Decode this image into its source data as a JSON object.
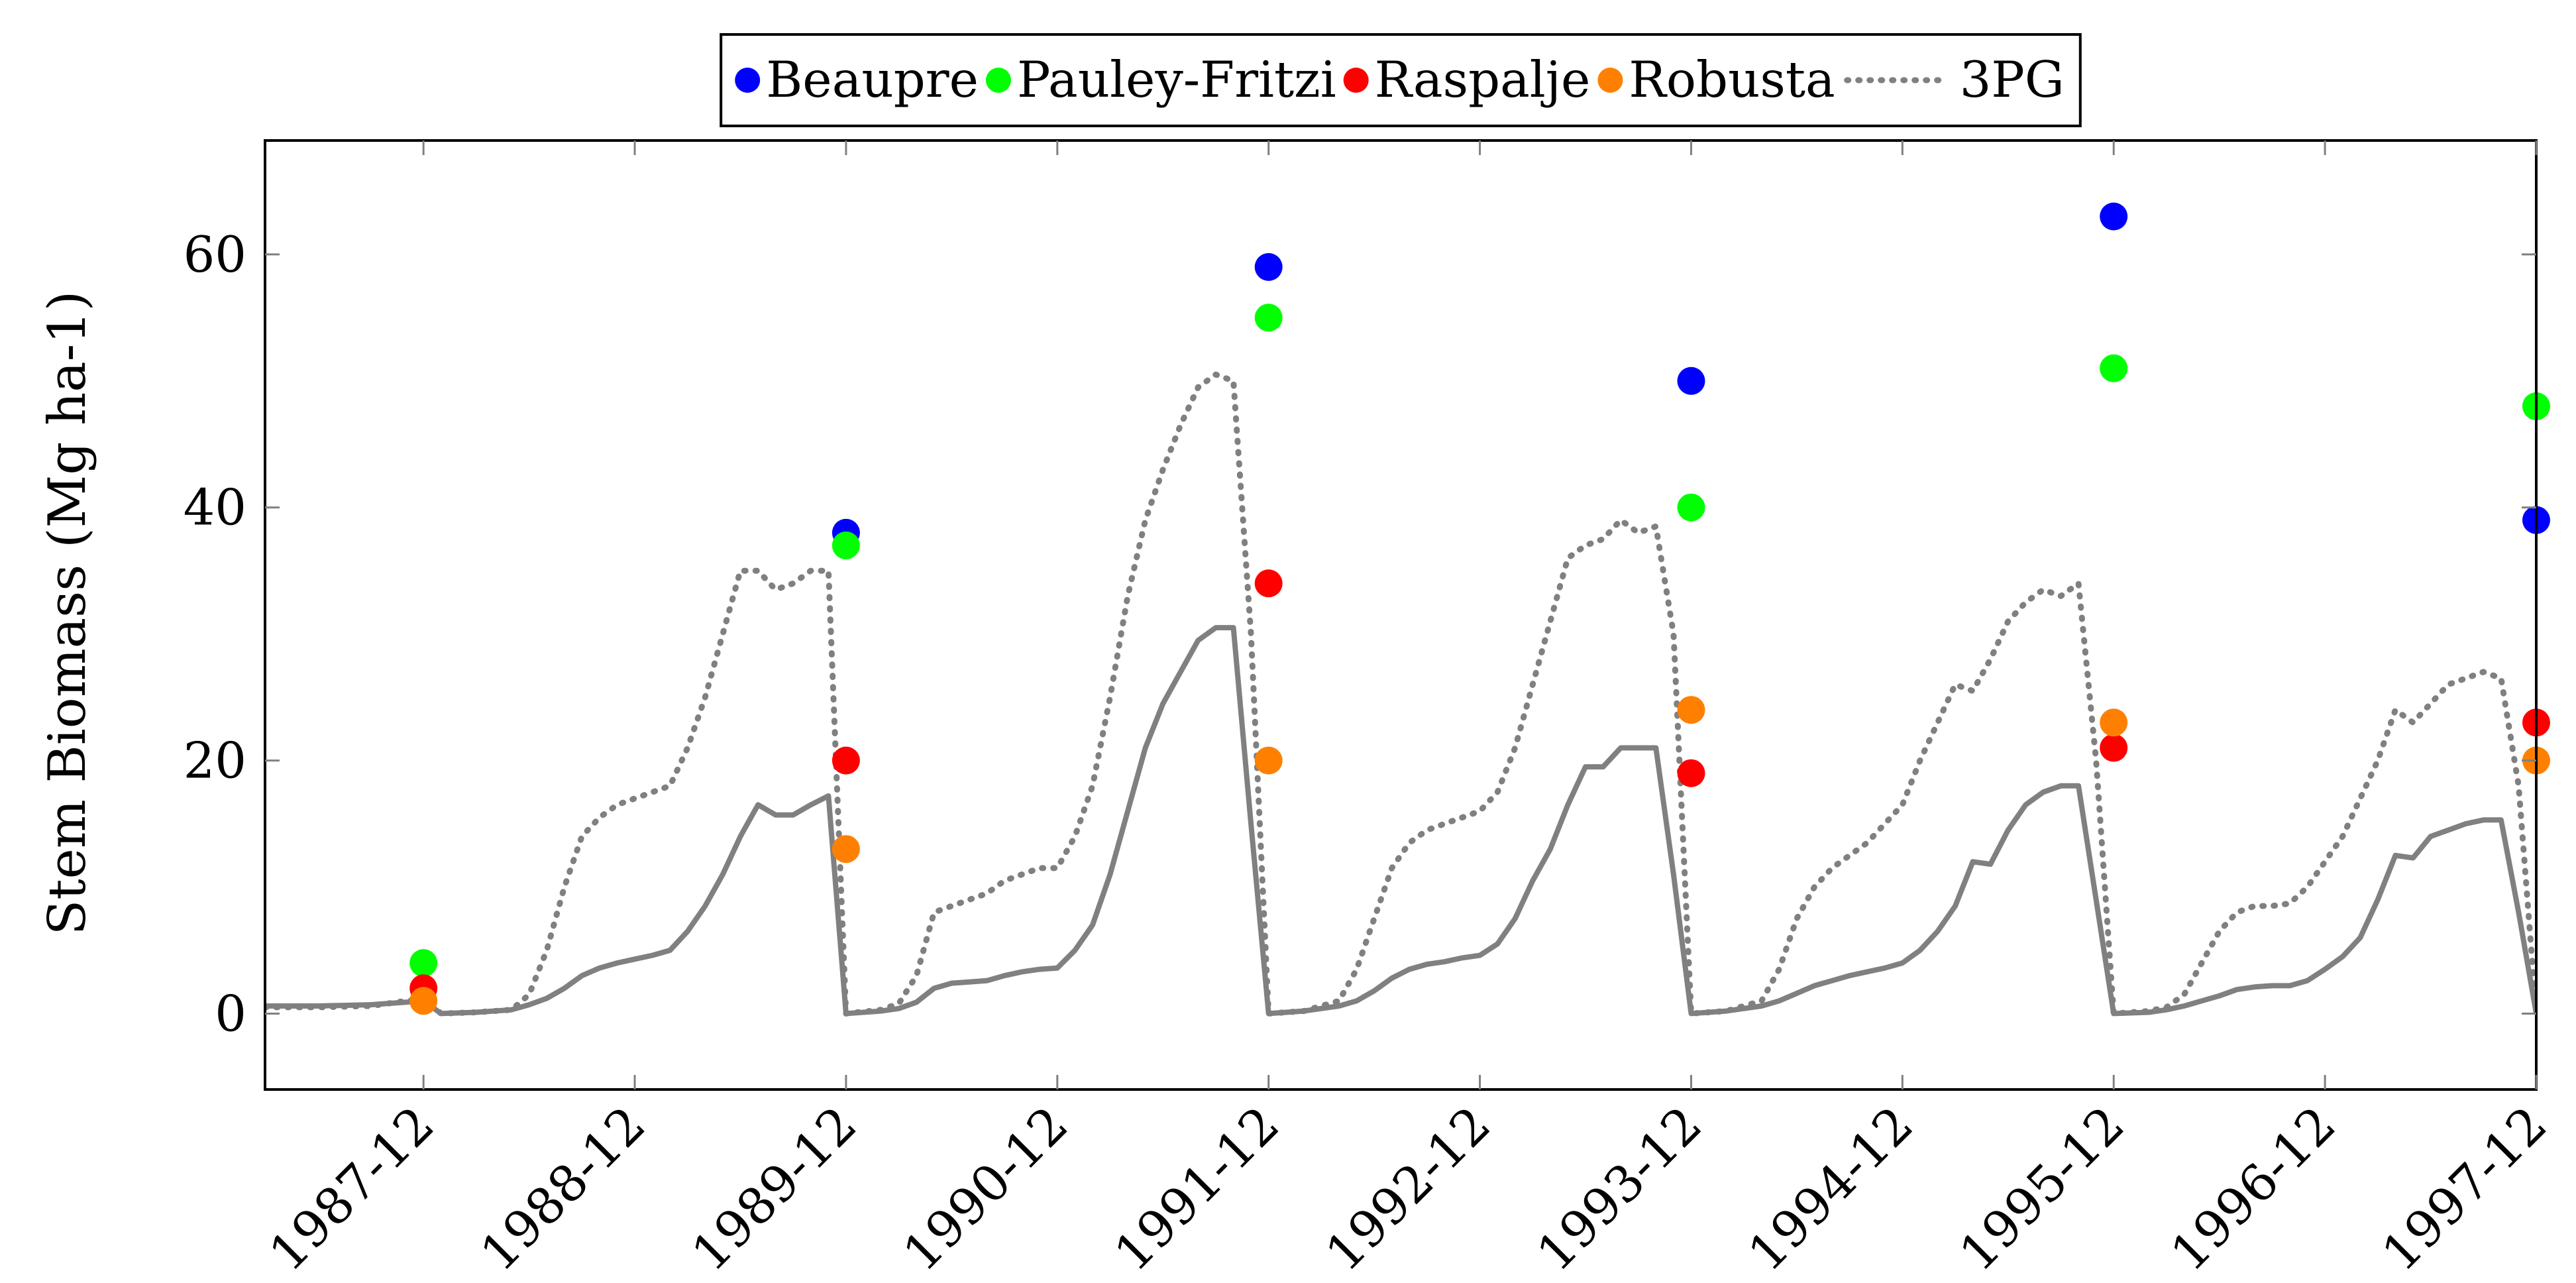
{
  "chart_data": {
    "type": "scatter",
    "xlabel": "",
    "ylabel": "Stem Biomass (Mg ha-1)",
    "x_axis": "date (monthly)",
    "xlim": [
      "1987-03",
      "1997-12"
    ],
    "ylim": [
      -6,
      69
    ],
    "x_ticks": [
      "1987-12",
      "1988-12",
      "1989-12",
      "1990-12",
      "1991-12",
      "1992-12",
      "1993-12",
      "1994-12",
      "1995-12",
      "1996-12",
      "1997-12"
    ],
    "y_ticks": [
      0,
      20,
      40,
      60
    ],
    "legend": {
      "placement": "top-center, outside plot"
    },
    "grid": false,
    "series": [
      {
        "name": "Beaupre",
        "kind": "points",
        "color": "#0000ff",
        "points": [
          [
            "1989-12",
            38
          ],
          [
            "1991-12",
            59
          ],
          [
            "1993-12",
            50
          ],
          [
            "1995-12",
            63
          ],
          [
            "1997-12",
            39
          ]
        ]
      },
      {
        "name": "Pauley-Fritzi",
        "kind": "points",
        "color": "#00ff00",
        "points": [
          [
            "1987-12",
            4
          ],
          [
            "1989-12",
            37
          ],
          [
            "1991-12",
            55
          ],
          [
            "1993-12",
            40
          ],
          [
            "1995-12",
            51
          ],
          [
            "1997-12",
            48
          ]
        ]
      },
      {
        "name": "Raspalje",
        "kind": "points",
        "color": "#ff0000",
        "points": [
          [
            "1987-12",
            2
          ],
          [
            "1989-12",
            20
          ],
          [
            "1991-12",
            34
          ],
          [
            "1993-12",
            19
          ],
          [
            "1995-12",
            21
          ],
          [
            "1997-12",
            23
          ]
        ]
      },
      {
        "name": "Robusta",
        "kind": "points",
        "color": "#ff8000",
        "points": [
          [
            "1987-12",
            1
          ],
          [
            "1989-12",
            13
          ],
          [
            "1991-12",
            20
          ],
          [
            "1993-12",
            24
          ],
          [
            "1995-12",
            23
          ],
          [
            "1997-12",
            20
          ]
        ]
      },
      {
        "name": "3PG",
        "kind": "line",
        "dashed": true,
        "color": "#808080",
        "points": [
          [
            "1987-03",
            0.5
          ],
          [
            "1987-06",
            0.5
          ],
          [
            "1987-09",
            0.6
          ],
          [
            "1987-11",
            1.0
          ],
          [
            "1987-12",
            1.2
          ],
          [
            "1988-01",
            0.0
          ],
          [
            "1988-03",
            0.1
          ],
          [
            "1988-05",
            0.3
          ],
          [
            "1988-06",
            1.5
          ],
          [
            "1988-07",
            5.0
          ],
          [
            "1988-08",
            10.0
          ],
          [
            "1988-09",
            14.0
          ],
          [
            "1988-10",
            15.5
          ],
          [
            "1988-11",
            16.5
          ],
          [
            "1988-12",
            17.0
          ],
          [
            "1989-01",
            17.5
          ],
          [
            "1989-02",
            18.0
          ],
          [
            "1989-03",
            21.0
          ],
          [
            "1989-04",
            25.0
          ],
          [
            "1989-05",
            30.0
          ],
          [
            "1989-06",
            35.0
          ],
          [
            "1989-07",
            35.0
          ],
          [
            "1989-08",
            33.5
          ],
          [
            "1989-09",
            34.0
          ],
          [
            "1989-10",
            35.0
          ],
          [
            "1989-11",
            35.0
          ],
          [
            "1989-12",
            0.0
          ],
          [
            "1990-02",
            0.3
          ],
          [
            "1990-03",
            0.8
          ],
          [
            "1990-04",
            3.0
          ],
          [
            "1990-05",
            8.0
          ],
          [
            "1990-06",
            8.5
          ],
          [
            "1990-07",
            9.0
          ],
          [
            "1990-08",
            9.5
          ],
          [
            "1990-09",
            10.5
          ],
          [
            "1990-10",
            11.0
          ],
          [
            "1990-11",
            11.5
          ],
          [
            "1990-12",
            11.5
          ],
          [
            "1991-01",
            14.0
          ],
          [
            "1991-02",
            18.0
          ],
          [
            "1991-03",
            25.0
          ],
          [
            "1991-04",
            33.0
          ],
          [
            "1991-05",
            39.0
          ],
          [
            "1991-06",
            43.0
          ],
          [
            "1991-07",
            46.5
          ],
          [
            "1991-08",
            49.5
          ],
          [
            "1991-09",
            50.5
          ],
          [
            "1991-10",
            50.0
          ],
          [
            "1991-11",
            30.0
          ],
          [
            "1991-12",
            0.0
          ],
          [
            "1992-02",
            0.2
          ],
          [
            "1992-04",
            1.0
          ],
          [
            "1992-05",
            3.5
          ],
          [
            "1992-06",
            7.5
          ],
          [
            "1992-07",
            11.5
          ],
          [
            "1992-08",
            13.5
          ],
          [
            "1992-09",
            14.5
          ],
          [
            "1992-10",
            15.0
          ],
          [
            "1992-11",
            15.5
          ],
          [
            "1992-12",
            16.0
          ],
          [
            "1993-01",
            17.5
          ],
          [
            "1993-02",
            21.0
          ],
          [
            "1993-03",
            26.0
          ],
          [
            "1993-04",
            31.0
          ],
          [
            "1993-05",
            36.0
          ],
          [
            "1993-06",
            37.0
          ],
          [
            "1993-07",
            37.5
          ],
          [
            "1993-08",
            39.0
          ],
          [
            "1993-09",
            38.0
          ],
          [
            "1993-10",
            38.5
          ],
          [
            "1993-11",
            30.0
          ],
          [
            "1993-12",
            0.0
          ],
          [
            "1994-02",
            0.2
          ],
          [
            "1994-04",
            1.0
          ],
          [
            "1994-05",
            3.5
          ],
          [
            "1994-06",
            7.5
          ],
          [
            "1994-07",
            10.0
          ],
          [
            "1994-08",
            11.5
          ],
          [
            "1994-09",
            12.5
          ],
          [
            "1994-10",
            13.5
          ],
          [
            "1994-11",
            15.0
          ],
          [
            "1994-12",
            16.5
          ],
          [
            "1995-01",
            20.0
          ],
          [
            "1995-02",
            23.0
          ],
          [
            "1995-03",
            26.0
          ],
          [
            "1995-04",
            25.5
          ],
          [
            "1995-05",
            28.0
          ],
          [
            "1995-06",
            31.0
          ],
          [
            "1995-07",
            32.5
          ],
          [
            "1995-08",
            33.5
          ],
          [
            "1995-09",
            33.0
          ],
          [
            "1995-10",
            34.0
          ],
          [
            "1995-11",
            20.0
          ],
          [
            "1995-12",
            0.0
          ],
          [
            "1996-02",
            0.2
          ],
          [
            "1996-03",
            0.5
          ],
          [
            "1996-04",
            1.5
          ],
          [
            "1996-05",
            4.0
          ],
          [
            "1996-06",
            6.5
          ],
          [
            "1996-07",
            8.0
          ],
          [
            "1996-08",
            8.5
          ],
          [
            "1996-09",
            8.5
          ],
          [
            "1996-10",
            8.7
          ],
          [
            "1996-11",
            10.0
          ],
          [
            "1996-12",
            12.0
          ],
          [
            "1997-01",
            14.0
          ],
          [
            "1997-02",
            17.0
          ],
          [
            "1997-03",
            20.0
          ],
          [
            "1997-04",
            24.0
          ],
          [
            "1997-05",
            23.0
          ],
          [
            "1997-06",
            24.5
          ],
          [
            "1997-07",
            26.0
          ],
          [
            "1997-08",
            26.5
          ],
          [
            "1997-09",
            27.0
          ],
          [
            "1997-10",
            26.5
          ],
          [
            "1997-11",
            18.0
          ],
          [
            "1997-12",
            0.0
          ]
        ]
      },
      {
        "kind": "line",
        "dashed": false,
        "color": "#808080",
        "points": [
          [
            "1987-03",
            0.6
          ],
          [
            "1987-06",
            0.6
          ],
          [
            "1987-09",
            0.7
          ],
          [
            "1987-11",
            0.9
          ],
          [
            "1987-12",
            1.0
          ],
          [
            "1988-01",
            0.0
          ],
          [
            "1988-03",
            0.1
          ],
          [
            "1988-05",
            0.3
          ],
          [
            "1988-06",
            0.7
          ],
          [
            "1988-07",
            1.2
          ],
          [
            "1988-08",
            2.0
          ],
          [
            "1988-09",
            3.0
          ],
          [
            "1988-10",
            3.6
          ],
          [
            "1988-11",
            4.0
          ],
          [
            "1988-12",
            4.3
          ],
          [
            "1989-01",
            4.6
          ],
          [
            "1989-02",
            5.0
          ],
          [
            "1989-03",
            6.5
          ],
          [
            "1989-04",
            8.5
          ],
          [
            "1989-05",
            11.0
          ],
          [
            "1989-06",
            14.0
          ],
          [
            "1989-07",
            16.5
          ],
          [
            "1989-08",
            15.7
          ],
          [
            "1989-09",
            15.7
          ],
          [
            "1989-10",
            16.5
          ],
          [
            "1989-11",
            17.2
          ],
          [
            "1989-12",
            0.0
          ],
          [
            "1990-02",
            0.2
          ],
          [
            "1990-03",
            0.4
          ],
          [
            "1990-04",
            0.9
          ],
          [
            "1990-05",
            2.0
          ],
          [
            "1990-06",
            2.4
          ],
          [
            "1990-07",
            2.5
          ],
          [
            "1990-08",
            2.6
          ],
          [
            "1990-09",
            3.0
          ],
          [
            "1990-10",
            3.3
          ],
          [
            "1990-11",
            3.5
          ],
          [
            "1990-12",
            3.6
          ],
          [
            "1991-01",
            5.0
          ],
          [
            "1991-02",
            7.0
          ],
          [
            "1991-03",
            11.0
          ],
          [
            "1991-04",
            16.0
          ],
          [
            "1991-05",
            21.0
          ],
          [
            "1991-06",
            24.5
          ],
          [
            "1991-07",
            27.0
          ],
          [
            "1991-08",
            29.5
          ],
          [
            "1991-09",
            30.5
          ],
          [
            "1991-10",
            30.5
          ],
          [
            "1991-11",
            15.0
          ],
          [
            "1991-12",
            0.0
          ],
          [
            "1992-02",
            0.2
          ],
          [
            "1992-04",
            0.6
          ],
          [
            "1992-05",
            1.0
          ],
          [
            "1992-06",
            1.8
          ],
          [
            "1992-07",
            2.8
          ],
          [
            "1992-08",
            3.5
          ],
          [
            "1992-09",
            3.9
          ],
          [
            "1992-10",
            4.1
          ],
          [
            "1992-11",
            4.4
          ],
          [
            "1992-12",
            4.6
          ],
          [
            "1993-01",
            5.5
          ],
          [
            "1993-02",
            7.5
          ],
          [
            "1993-03",
            10.5
          ],
          [
            "1993-04",
            13.0
          ],
          [
            "1993-05",
            16.5
          ],
          [
            "1993-06",
            19.5
          ],
          [
            "1993-07",
            19.5
          ],
          [
            "1993-08",
            21.0
          ],
          [
            "1993-09",
            21.0
          ],
          [
            "1993-10",
            21.0
          ],
          [
            "1993-11",
            11.0
          ],
          [
            "1993-12",
            0.0
          ],
          [
            "1994-02",
            0.2
          ],
          [
            "1994-04",
            0.6
          ],
          [
            "1994-05",
            1.0
          ],
          [
            "1994-06",
            1.6
          ],
          [
            "1994-07",
            2.2
          ],
          [
            "1994-08",
            2.6
          ],
          [
            "1994-09",
            3.0
          ],
          [
            "1994-10",
            3.3
          ],
          [
            "1994-11",
            3.6
          ],
          [
            "1994-12",
            4.0
          ],
          [
            "1995-01",
            5.0
          ],
          [
            "1995-02",
            6.5
          ],
          [
            "1995-03",
            8.5
          ],
          [
            "1995-04",
            12.0
          ],
          [
            "1995-05",
            11.8
          ],
          [
            "1995-06",
            14.5
          ],
          [
            "1995-07",
            16.5
          ],
          [
            "1995-08",
            17.5
          ],
          [
            "1995-09",
            18.0
          ],
          [
            "1995-10",
            18.0
          ],
          [
            "1995-11",
            9.0
          ],
          [
            "1995-12",
            0.0
          ],
          [
            "1996-02",
            0.1
          ],
          [
            "1996-03",
            0.3
          ],
          [
            "1996-04",
            0.6
          ],
          [
            "1996-05",
            1.0
          ],
          [
            "1996-06",
            1.4
          ],
          [
            "1996-07",
            1.9
          ],
          [
            "1996-08",
            2.1
          ],
          [
            "1996-09",
            2.2
          ],
          [
            "1996-10",
            2.2
          ],
          [
            "1996-11",
            2.6
          ],
          [
            "1996-12",
            3.5
          ],
          [
            "1997-01",
            4.5
          ],
          [
            "1997-02",
            6.0
          ],
          [
            "1997-03",
            9.0
          ],
          [
            "1997-04",
            12.5
          ],
          [
            "1997-05",
            12.3
          ],
          [
            "1997-06",
            14.0
          ],
          [
            "1997-07",
            14.5
          ],
          [
            "1997-08",
            15.0
          ],
          [
            "1997-09",
            15.3
          ],
          [
            "1997-10",
            15.3
          ],
          [
            "1997-11",
            8.0
          ],
          [
            "1997-12",
            0.0
          ]
        ]
      }
    ]
  }
}
